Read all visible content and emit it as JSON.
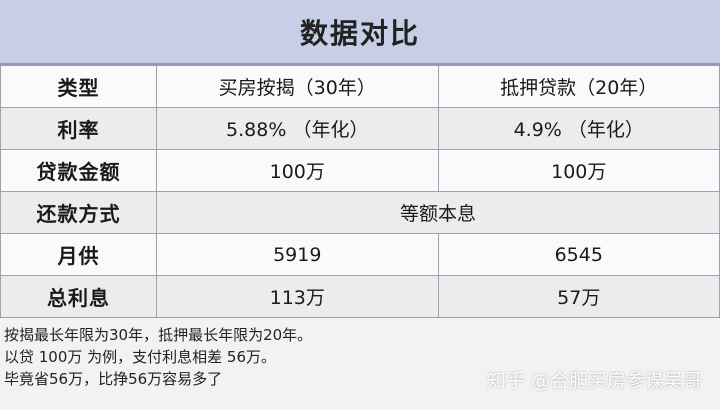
{
  "title": "数据对比",
  "table": {
    "rows": [
      {
        "label": "类型",
        "col1": "买房按揭（30年）",
        "col2": "抵押贷款（20年）"
      },
      {
        "label": "利率",
        "col1": "5.88%  （年化）",
        "col2": "4.9%  （年化）"
      },
      {
        "label": "贷款金额",
        "col1": "100万",
        "col2": "100万"
      },
      {
        "label": "还款方式",
        "merged": "等额本息"
      },
      {
        "label": "月供",
        "col1": "5919",
        "col2": "6545"
      },
      {
        "label": "总利息",
        "col1": "113万",
        "col2": "57万"
      }
    ]
  },
  "notes": [
    "按揭最长年限为30年，抵押最长年限为20年。",
    "以贷  100万  为例，支付利息相差  56万。",
    "毕竟省56万，比挣56万容易多了"
  ],
  "watermark": "知乎 @合肥买房参谋吴哥"
}
